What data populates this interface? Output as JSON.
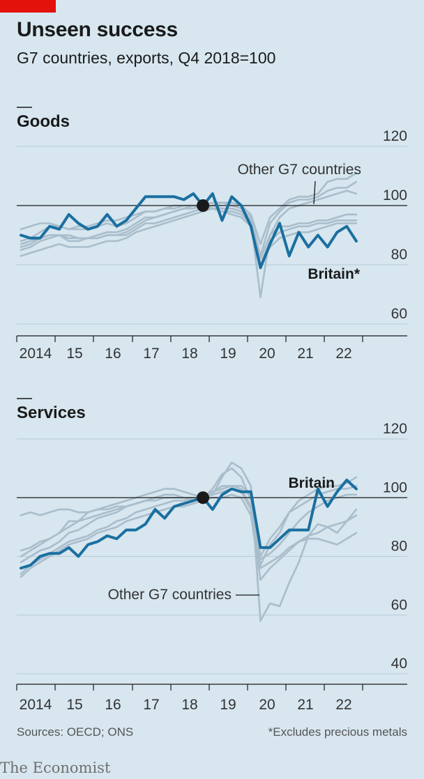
{
  "header": {
    "title": "Unseen success",
    "subtitle": "G7 countries, exports, Q4 2018=100"
  },
  "footer": {
    "sources": "Sources: OECD; ONS",
    "footnote": "*Excludes precious metals",
    "brand": "The Economist"
  },
  "colors": {
    "britain": "#1a6fa0",
    "others": "#a9bdcb",
    "grid": "#b9cad6",
    "baseline": "#1a1a1a",
    "dot": "#1a1a1a"
  },
  "chart_data": [
    {
      "type": "line",
      "title": "Goods",
      "x_tick_labels": [
        "2014",
        "15",
        "16",
        "17",
        "18",
        "19",
        "20",
        "21",
        "22"
      ],
      "y_ticks": [
        60,
        80,
        100,
        120
      ],
      "ylim": [
        60,
        120
      ],
      "reference_value": 100,
      "highlight_point": {
        "quarter": "2018 Q4",
        "value": 100
      },
      "annotations": {
        "others_label": "Other G7 countries",
        "britain_label": "Britain*"
      },
      "series": [
        {
          "name": "Britain*",
          "start": "2014 Q1",
          "values": [
            90,
            89,
            89,
            93,
            92,
            97,
            94,
            92,
            93,
            97,
            93,
            95,
            99,
            103,
            103,
            103,
            103,
            102,
            104,
            100,
            104,
            95,
            103,
            100,
            93,
            79,
            87,
            94,
            83,
            91,
            86,
            90,
            86,
            91,
            93,
            88
          ]
        },
        {
          "start": "2014 Q1",
          "values": [
            92,
            93,
            94,
            94,
            93,
            92,
            93,
            93,
            94,
            95,
            95,
            96,
            97,
            98,
            98,
            99,
            99,
            100,
            100,
            100,
            101,
            101,
            101,
            100,
            97,
            87,
            96,
            99,
            102,
            103,
            103,
            104,
            108,
            109,
            109,
            111
          ]
        },
        {
          "start": "2014 Q1",
          "values": [
            88,
            89,
            91,
            93,
            93,
            92,
            92,
            92,
            93,
            94,
            93,
            94,
            96,
            98,
            98,
            99,
            100,
            100,
            100,
            99,
            100,
            101,
            100,
            99,
            96,
            83,
            94,
            98,
            101,
            102,
            102,
            103,
            105,
            106,
            106,
            108
          ]
        },
        {
          "start": "2014 Q1",
          "values": [
            86,
            87,
            89,
            90,
            90,
            89,
            89,
            89,
            90,
            91,
            91,
            92,
            94,
            96,
            96,
            97,
            98,
            99,
            99,
            100,
            99,
            99,
            99,
            98,
            95,
            69,
            90,
            96,
            99,
            100,
            101,
            102,
            103,
            104,
            105,
            104
          ]
        },
        {
          "start": "2014 Q1",
          "values": [
            87,
            88,
            89,
            90,
            90,
            90,
            89,
            89,
            89,
            90,
            90,
            90,
            92,
            94,
            94,
            95,
            96,
            97,
            98,
            99,
            100,
            99,
            99,
            98,
            95,
            82,
            90,
            93,
            93,
            94,
            94,
            95,
            95,
            96,
            97,
            97
          ]
        },
        {
          "start": "2014 Q1",
          "values": [
            85,
            86,
            88,
            89,
            90,
            88,
            88,
            89,
            89,
            90,
            90,
            91,
            93,
            95,
            96,
            97,
            98,
            99,
            100,
            100,
            99,
            98,
            97,
            96,
            93,
            80,
            88,
            91,
            92,
            93,
            93,
            94,
            94,
            95,
            95,
            95
          ]
        },
        {
          "start": "2014 Q1",
          "values": [
            83,
            84,
            85,
            86,
            87,
            86,
            86,
            86,
            87,
            88,
            88,
            89,
            91,
            92,
            93,
            94,
            95,
            96,
            97,
            98,
            99,
            98,
            98,
            97,
            94,
            79,
            86,
            89,
            90,
            91,
            91,
            92,
            93,
            94,
            94,
            94
          ]
        }
      ]
    },
    {
      "type": "line",
      "title": "Services",
      "x_tick_labels": [
        "2014",
        "15",
        "16",
        "17",
        "18",
        "19",
        "20",
        "21",
        "22"
      ],
      "y_ticks": [
        40,
        60,
        80,
        100,
        120
      ],
      "ylim": [
        40,
        120
      ],
      "reference_value": 100,
      "highlight_point": {
        "quarter": "2018 Q4",
        "value": 100
      },
      "annotations": {
        "others_label": "Other G7 countries",
        "britain_label": "Britain"
      },
      "series": [
        {
          "name": "Britain",
          "start": "2014 Q1",
          "values": [
            76,
            77,
            80,
            81,
            81,
            83,
            80,
            84,
            85,
            87,
            86,
            89,
            89,
            91,
            96,
            93,
            97,
            98,
            99,
            100,
            96,
            101,
            103,
            102,
            102,
            83,
            83,
            86,
            89,
            89,
            89,
            103,
            97,
            102,
            106,
            103
          ]
        },
        {
          "start": "2014 Q1",
          "values": [
            94,
            95,
            94,
            95,
            96,
            96,
            95,
            95,
            96,
            96,
            97,
            97,
            98,
            99,
            99,
            100,
            100,
            100,
            99,
            100,
            101,
            107,
            112,
            110,
            104,
            58,
            64,
            63,
            71,
            78,
            87,
            91,
            90,
            88,
            92,
            96
          ]
        },
        {
          "start": "2014 Q1",
          "values": [
            82,
            83,
            85,
            86,
            88,
            90,
            92,
            93,
            94,
            95,
            96,
            97,
            98,
            99,
            100,
            101,
            101,
            100,
            99,
            100,
            102,
            103,
            104,
            104,
            101,
            80,
            86,
            90,
            95,
            99,
            101,
            103,
            104,
            104,
            105,
            107
          ]
        },
        {
          "start": "2014 Q1",
          "values": [
            80,
            82,
            84,
            86,
            88,
            92,
            92,
            95,
            96,
            97,
            98,
            99,
            100,
            101,
            102,
            103,
            103,
            102,
            101,
            100,
            103,
            108,
            110,
            107,
            99,
            77,
            84,
            88,
            95,
            97,
            99,
            101,
            102,
            103,
            103,
            104
          ]
        },
        {
          "start": "2014 Q1",
          "values": [
            78,
            80,
            82,
            83,
            85,
            88,
            89,
            91,
            93,
            94,
            95,
            97,
            98,
            99,
            100,
            101,
            101,
            100,
            100,
            100,
            102,
            104,
            104,
            103,
            97,
            79,
            81,
            84,
            88,
            92,
            95,
            97,
            99,
            100,
            101,
            101
          ]
        },
        {
          "start": "2014 Q1",
          "values": [
            74,
            77,
            79,
            81,
            83,
            85,
            86,
            87,
            89,
            90,
            92,
            93,
            95,
            96,
            97,
            98,
            99,
            99,
            100,
            100,
            101,
            102,
            103,
            102,
            96,
            76,
            78,
            80,
            83,
            85,
            86,
            86,
            85,
            84,
            86,
            88
          ]
        },
        {
          "start": "2014 Q1",
          "values": [
            73,
            76,
            78,
            80,
            82,
            84,
            85,
            86,
            88,
            89,
            90,
            92,
            93,
            94,
            95,
            96,
            97,
            97,
            98,
            99,
            100,
            100,
            101,
            100,
            94,
            72,
            76,
            79,
            82,
            85,
            87,
            88,
            90,
            91,
            92,
            94
          ]
        }
      ]
    }
  ]
}
